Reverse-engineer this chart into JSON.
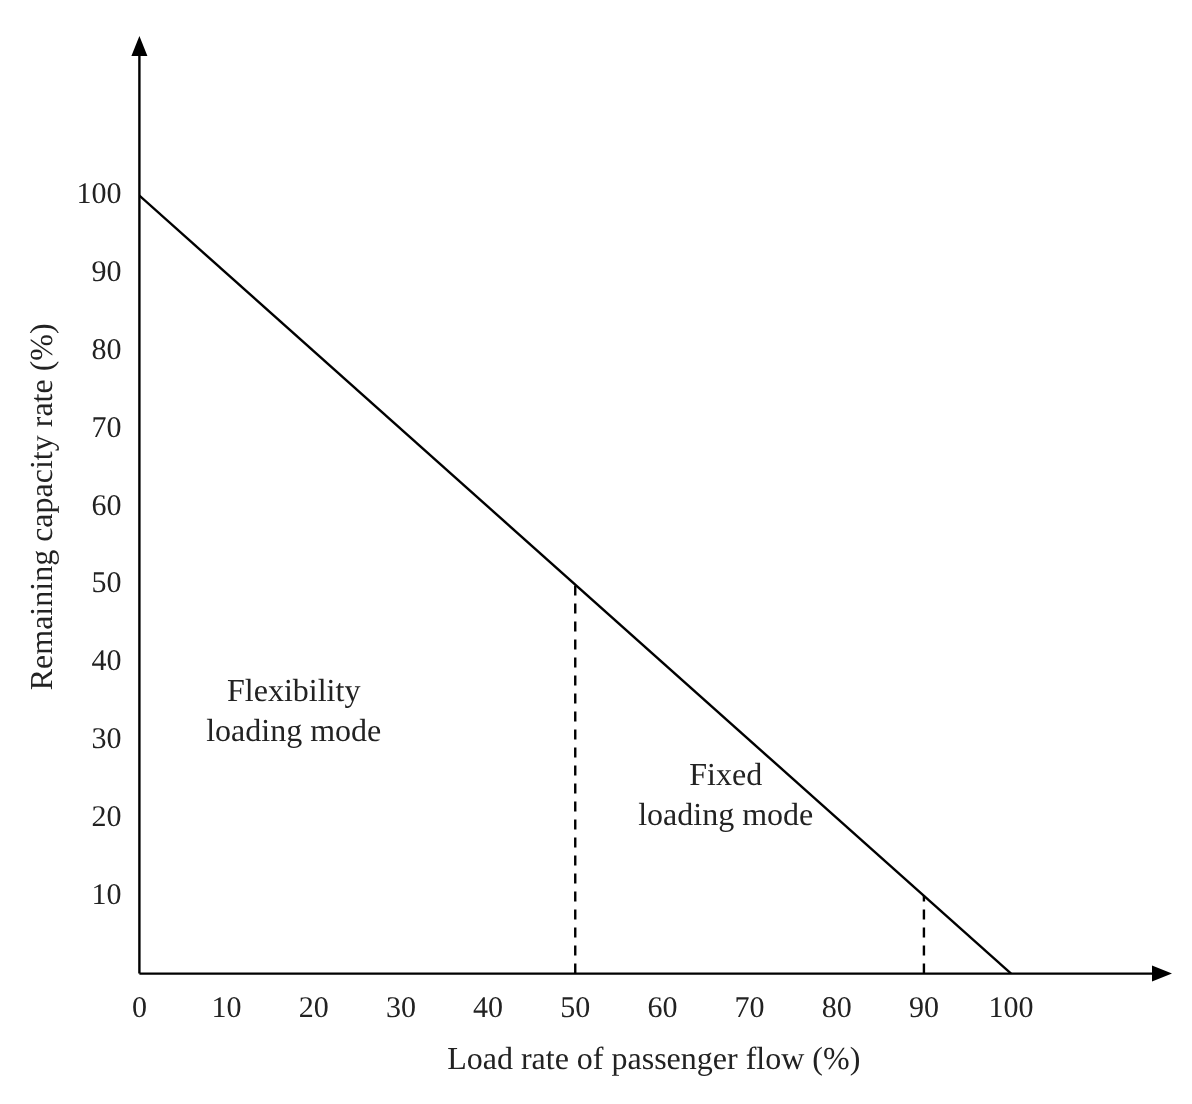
{
  "chart_data": {
    "type": "line",
    "xlabel": "Load rate of passenger flow (%)",
    "ylabel": "Remaining capacity rate (%)",
    "xlim": [
      0,
      118
    ],
    "ylim": [
      0,
      120
    ],
    "xticks": [
      0,
      10,
      20,
      30,
      40,
      50,
      60,
      70,
      80,
      90,
      100
    ],
    "yticks": [
      10,
      20,
      30,
      40,
      50,
      60,
      70,
      80,
      90,
      100
    ],
    "grid": false,
    "legend": false,
    "marker": "none",
    "series": [
      {
        "color": "#000000",
        "x": [
          0,
          100
        ],
        "values": [
          100,
          0
        ],
        "line_style": "solid"
      },
      {
        "color": "#000000",
        "x": [
          50,
          50
        ],
        "values": [
          0,
          50
        ],
        "line_style": "dashed"
      },
      {
        "color": "#000000",
        "x": [
          90,
          90
        ],
        "values": [
          0,
          10
        ],
        "line_style": "dashed"
      }
    ],
    "annotations": [
      "Flexibility\nloading mode",
      "Fixed\nloading mode"
    ]
  }
}
